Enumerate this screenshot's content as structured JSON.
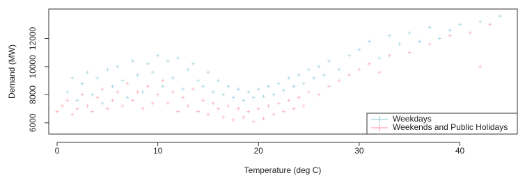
{
  "chart_data": {
    "type": "scatter",
    "x_label": "Temperature (deg C)",
    "y_label": "Demand (MW)",
    "xlim": [
      -0.83,
      45.7
    ],
    "ylim": [
      5200,
      14100
    ],
    "xticks": [
      0,
      10,
      20,
      30,
      40
    ],
    "yticks": [
      6000,
      8000,
      10000,
      12000
    ],
    "legend": "bottom-right",
    "series": [
      {
        "name": "Weekdays",
        "color": "#add8e6",
        "x": [
          1,
          1.5,
          2,
          2.5,
          3,
          3.5,
          4,
          4.5,
          5,
          5.5,
          6,
          6.5,
          7,
          7.5,
          8,
          8.5,
          9,
          9.5,
          10,
          10.5,
          11,
          11.5,
          12,
          12.5,
          13,
          13.5,
          14,
          14.5,
          15,
          15.5,
          16,
          16.5,
          17,
          17.5,
          18,
          18.5,
          19,
          19.5,
          20,
          20.5,
          21,
          21.5,
          22,
          22.5,
          23,
          23.5,
          24,
          24.5,
          25,
          25.5,
          26,
          26.5,
          27,
          28,
          29,
          30,
          31,
          32,
          33,
          34,
          35,
          36,
          37,
          38,
          39,
          40,
          41,
          42,
          43,
          44
        ],
        "values": [
          8200,
          9200,
          7600,
          8800,
          9600,
          8000,
          9200,
          7400,
          9800,
          8600,
          10000,
          9000,
          7800,
          10400,
          9400,
          8200,
          10200,
          9600,
          10800,
          8600,
          10400,
          9200,
          10600,
          8400,
          9800,
          10200,
          9000,
          8600,
          9600,
          8200,
          9000,
          8000,
          8600,
          7800,
          8400,
          7600,
          8200,
          7800,
          8400,
          7900,
          8600,
          8000,
          8800,
          8300,
          9200,
          8600,
          9400,
          8800,
          9800,
          9200,
          10000,
          9400,
          10400,
          9800,
          10800,
          11200,
          11800,
          10600,
          12200,
          11600,
          12400,
          11800,
          12800,
          12000,
          12600,
          13000,
          12400,
          13200,
          13000,
          13600
        ]
      },
      {
        "name": "Weekends and Public Holidays",
        "color": "#ffb6c1",
        "x": [
          0,
          0.5,
          1,
          1.5,
          2,
          2.5,
          3,
          3.5,
          4,
          4.5,
          5,
          5.5,
          6,
          6.5,
          7,
          7.5,
          8,
          8.5,
          9,
          9.5,
          10,
          10.5,
          11,
          11.5,
          12,
          12.5,
          13,
          13.5,
          14,
          14.5,
          15,
          15.5,
          16,
          16.5,
          17,
          17.5,
          18,
          18.5,
          19,
          19.5,
          20,
          20.5,
          21,
          21.5,
          22,
          22.5,
          23,
          23.5,
          24,
          24.5,
          25,
          26,
          27,
          28,
          29,
          30,
          31,
          32,
          33,
          35,
          37,
          39,
          41,
          42,
          43
        ],
        "values": [
          6800,
          7200,
          7600,
          6600,
          7000,
          8000,
          7200,
          6800,
          7800,
          8400,
          7000,
          7600,
          8200,
          7200,
          8800,
          7600,
          8200,
          7000,
          8600,
          7400,
          8000,
          9000,
          7400,
          8200,
          6800,
          7800,
          7200,
          8400,
          6800,
          7600,
          6600,
          7400,
          7000,
          6400,
          7200,
          6200,
          7000,
          6400,
          6800,
          6100,
          7000,
          6300,
          7200,
          6600,
          7400,
          6800,
          7600,
          7000,
          7800,
          7200,
          8200,
          8000,
          8600,
          9000,
          9400,
          9800,
          10200,
          9600,
          10800,
          11000,
          11600,
          12200,
          12400,
          10000,
          13000
        ]
      }
    ]
  }
}
